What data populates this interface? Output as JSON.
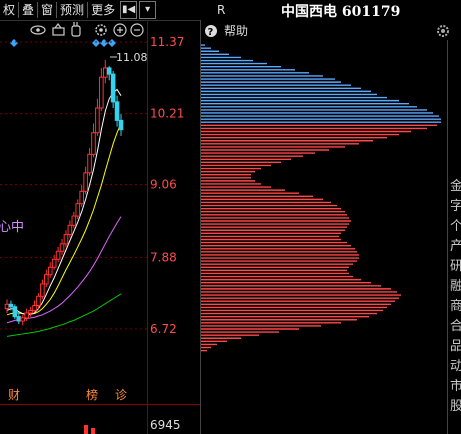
{
  "toolbar": {
    "items": [
      "权",
      "叠",
      "窗",
      "预测",
      "更多"
    ],
    "flag_glyph": "▮◀",
    "dropdown_glyph": "▾"
  },
  "chart": {
    "price_labels": [
      "11.37",
      "10.21",
      "9.06",
      "7.88",
      "6.72"
    ],
    "high_label": "11.08",
    "overlay_label": "心中",
    "volume_label": "6945",
    "event_labels": [
      "财",
      "榜",
      "诊"
    ],
    "colors": {
      "up": "#ff3232",
      "down": "#35d3ee",
      "ma5": "#ffffff",
      "ma10": "#ffff00",
      "ma20": "#e066ff",
      "ma60": "#00c800",
      "axis_text": "#ff4b4b"
    }
  },
  "chip": {
    "r_label": "R",
    "title": "中国西电 601179",
    "help_label": "帮助",
    "colors": {
      "profit": "#5aaaff",
      "loss": "#ff4848"
    }
  },
  "sidebar": {
    "chars": [
      "金",
      "字",
      "个",
      "产",
      "研",
      "融",
      "商",
      "合",
      "品",
      "动",
      "市",
      "股"
    ]
  },
  "chart_data": {
    "type": "horizontal-bar",
    "y": [
      11.32,
      11.27,
      11.22,
      11.17,
      11.12,
      11.07,
      11.02,
      10.97,
      10.92,
      10.87,
      10.82,
      10.77,
      10.72,
      10.67,
      10.62,
      10.57,
      10.52,
      10.47,
      10.42,
      10.37,
      10.32,
      10.27,
      10.22,
      10.17,
      10.12,
      10.07,
      10.02,
      9.97,
      9.92,
      9.87,
      9.82,
      9.77,
      9.72,
      9.67,
      9.62,
      9.57,
      9.52,
      9.47,
      9.42,
      9.37,
      9.32,
      9.27,
      9.22,
      9.17,
      9.12,
      9.07,
      9.02,
      8.97,
      8.92,
      8.87,
      8.82,
      8.77,
      8.72,
      8.67,
      8.62,
      8.57,
      8.52,
      8.47,
      8.42,
      8.37,
      8.32,
      8.27,
      8.22,
      8.17,
      8.12,
      8.07,
      8.02,
      7.97,
      7.92,
      7.87,
      7.82,
      7.77,
      7.72,
      7.67,
      7.62,
      7.57,
      7.52,
      7.47,
      7.42,
      7.37,
      7.32,
      7.27,
      7.22,
      7.17,
      7.12,
      7.07,
      7.02,
      6.97,
      6.92,
      6.87,
      6.82,
      6.77,
      6.72,
      6.67,
      6.62,
      6.57,
      6.52,
      6.47,
      6.42,
      6.37
    ],
    "values": [
      4,
      10,
      18,
      28,
      40,
      52,
      66,
      80,
      94,
      108,
      122,
      134,
      140,
      150,
      160,
      170,
      176,
      186,
      198,
      208,
      216,
      226,
      232,
      238,
      240,
      240,
      236,
      226,
      210,
      198,
      186,
      172,
      158,
      144,
      128,
      114,
      102,
      90,
      80,
      70,
      60,
      54,
      50,
      50,
      54,
      60,
      70,
      84,
      98,
      112,
      122,
      130,
      136,
      140,
      144,
      146,
      148,
      150,
      148,
      146,
      144,
      140,
      138,
      140,
      146,
      150,
      154,
      156,
      158,
      158,
      156,
      152,
      148,
      146,
      148,
      152,
      160,
      170,
      180,
      190,
      196,
      200,
      198,
      194,
      190,
      186,
      182,
      176,
      168,
      156,
      140,
      120,
      98,
      78,
      58,
      40,
      26,
      16,
      10,
      6
    ],
    "split_price": 10.07
  },
  "kline_data": {
    "dates": [
      1,
      2,
      3,
      4,
      5,
      6,
      7,
      8,
      9,
      10,
      11,
      12,
      13,
      14,
      15,
      16,
      17,
      18,
      19,
      20,
      21,
      22,
      23,
      24,
      25,
      26,
      27,
      28,
      29,
      30
    ],
    "open": [
      7.05,
      7.12,
      7.08,
      6.92,
      6.85,
      6.9,
      6.98,
      7.02,
      7.1,
      7.25,
      7.45,
      7.6,
      7.72,
      7.85,
      7.98,
      8.1,
      8.25,
      8.4,
      8.55,
      8.75,
      8.95,
      9.25,
      9.55,
      9.9,
      10.3,
      10.8,
      10.95,
      10.85,
      10.4,
      10.1
    ],
    "close": [
      7.12,
      7.08,
      6.92,
      6.85,
      6.9,
      6.98,
      7.02,
      7.1,
      7.25,
      7.45,
      7.6,
      7.72,
      7.85,
      7.98,
      8.1,
      8.25,
      8.4,
      8.55,
      8.75,
      8.95,
      9.25,
      9.55,
      9.9,
      10.3,
      10.8,
      10.95,
      10.85,
      10.4,
      10.1,
      9.95
    ],
    "high": [
      7.2,
      7.18,
      7.12,
      6.98,
      6.95,
      7.05,
      7.08,
      7.18,
      7.3,
      7.52,
      7.68,
      7.8,
      7.92,
      8.05,
      8.18,
      8.32,
      8.48,
      8.62,
      8.82,
      9.05,
      9.35,
      9.65,
      10.05,
      10.45,
      10.95,
      11.08,
      10.98,
      10.9,
      10.5,
      10.2
    ],
    "low": [
      6.98,
      7.02,
      6.88,
      6.8,
      6.78,
      6.85,
      6.92,
      7.0,
      7.05,
      7.2,
      7.4,
      7.55,
      7.68,
      7.8,
      7.92,
      8.05,
      8.2,
      8.35,
      8.5,
      8.7,
      8.9,
      9.2,
      9.5,
      9.85,
      10.25,
      10.7,
      10.75,
      10.3,
      10.0,
      9.85
    ],
    "ma5": [
      7.02,
      7.05,
      7.04,
      7.0,
      6.97,
      6.95,
      6.96,
      6.98,
      7.05,
      7.15,
      7.28,
      7.42,
      7.55,
      7.7,
      7.85,
      8.0,
      8.15,
      8.3,
      8.45,
      8.62,
      8.82,
      9.05,
      9.3,
      9.6,
      9.95,
      10.25,
      10.45,
      10.55,
      10.6,
      10.5
    ],
    "ma10": [
      6.95,
      6.97,
      6.98,
      6.98,
      6.97,
      6.96,
      6.96,
      6.97,
      7.0,
      7.05,
      7.12,
      7.2,
      7.3,
      7.42,
      7.55,
      7.68,
      7.8,
      7.92,
      8.05,
      8.18,
      8.32,
      8.48,
      8.65,
      8.85,
      9.05,
      9.28,
      9.5,
      9.72,
      9.9,
      10.05
    ],
    "ma20": [
      6.82,
      6.84,
      6.86,
      6.87,
      6.88,
      6.89,
      6.9,
      6.91,
      6.93,
      6.95,
      6.98,
      7.01,
      7.05,
      7.09,
      7.14,
      7.2,
      7.26,
      7.33,
      7.4,
      7.48,
      7.56,
      7.65,
      7.75,
      7.86,
      7.98,
      8.1,
      8.22,
      8.33,
      8.44,
      8.54
    ],
    "ma60": [
      6.6,
      6.61,
      6.62,
      6.63,
      6.64,
      6.65,
      6.66,
      6.67,
      6.68,
      6.7,
      6.71,
      6.73,
      6.75,
      6.77,
      6.79,
      6.81,
      6.84,
      6.86,
      6.89,
      6.92,
      6.95,
      6.98,
      7.01,
      7.05,
      7.09,
      7.13,
      7.17,
      7.21,
      7.25,
      7.29
    ]
  }
}
